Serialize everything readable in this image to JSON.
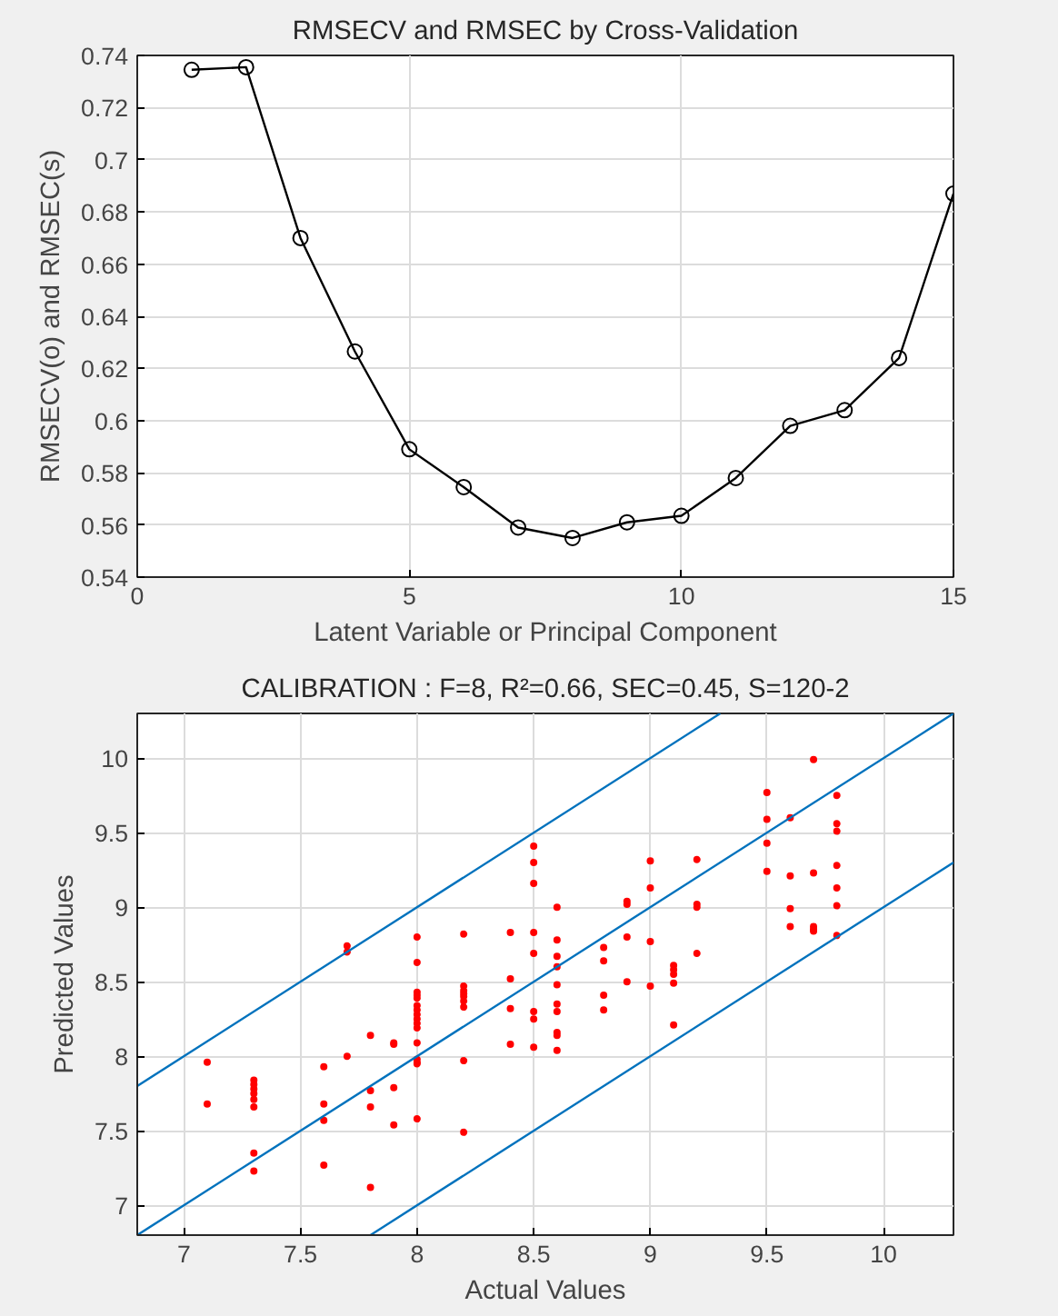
{
  "chart_data": [
    {
      "type": "line",
      "title": "RMSECV and RMSEC by Cross-Validation",
      "xlabel": "Latent Variable or Principal Component",
      "ylabel": "RMSECV(o) and RMSEC(s)",
      "x": [
        1,
        2,
        3,
        4,
        5,
        6,
        7,
        8,
        9,
        10,
        11,
        12,
        13,
        14,
        15
      ],
      "series": [
        {
          "color": "#000000",
          "marker": "circle",
          "values": [
            0.7345,
            0.7355,
            0.67,
            0.6265,
            0.589,
            0.5745,
            0.559,
            0.555,
            0.561,
            0.5635,
            0.578,
            0.598,
            0.604,
            0.624,
            0.687
          ]
        }
      ],
      "xlim": [
        0,
        15
      ],
      "ylim": [
        0.54,
        0.74
      ],
      "xticks": [
        0,
        5,
        10,
        15
      ],
      "yticks": [
        0.54,
        0.56,
        0.58,
        0.6,
        0.62,
        0.64,
        0.66,
        0.68,
        0.7,
        0.72,
        0.74
      ],
      "grid": true,
      "line_style": "solid"
    },
    {
      "type": "scatter",
      "title": "CALIBRATION : F=8, R²=0.66, SEC=0.45, S=120-2",
      "xlabel": "Actual Values",
      "ylabel": "Predicted Values",
      "series": [
        {
          "type": "scatter",
          "color": "#ff0000",
          "marker": "circle",
          "x": [
            7.1,
            7.1,
            7.3,
            7.3,
            7.3,
            7.3,
            7.3,
            7.3,
            7.3,
            7.3,
            7.6,
            7.6,
            7.6,
            7.6,
            7.7,
            7.7,
            7.7,
            7.8,
            7.8,
            7.8,
            7.8,
            7.9,
            7.9,
            7.9,
            7.9,
            8.0,
            8.0,
            8.0,
            8.0,
            8.0,
            8.0,
            8.0,
            8.0,
            8.0,
            8.0,
            8.0,
            8.0,
            8.0,
            8.0,
            8.0,
            8.0,
            8.2,
            8.2,
            8.2,
            8.2,
            8.2,
            8.2,
            8.2,
            8.2,
            8.2,
            8.4,
            8.4,
            8.4,
            8.4,
            8.5,
            8.5,
            8.5,
            8.5,
            8.5,
            8.5,
            8.5,
            8.5,
            8.6,
            8.6,
            8.6,
            8.6,
            8.6,
            8.6,
            8.6,
            8.6,
            8.6,
            8.6,
            8.8,
            8.8,
            8.8,
            8.8,
            8.9,
            8.9,
            8.9,
            8.9,
            9.0,
            9.0,
            9.0,
            9.0,
            9.1,
            9.1,
            9.1,
            9.1,
            9.1,
            9.2,
            9.2,
            9.2,
            9.2,
            9.5,
            9.5,
            9.5,
            9.5,
            9.6,
            9.6,
            9.6,
            9.6,
            9.7,
            9.7,
            9.7,
            9.7,
            9.7,
            9.8,
            9.8,
            9.8,
            9.8,
            9.8,
            9.8,
            9.8
          ],
          "values": [
            7.96,
            7.68,
            7.84,
            7.81,
            7.78,
            7.75,
            7.71,
            7.66,
            7.35,
            7.23,
            7.93,
            7.68,
            7.57,
            7.27,
            8.74,
            8.7,
            8.0,
            8.14,
            7.77,
            7.66,
            7.12,
            8.09,
            8.08,
            7.79,
            7.54,
            8.8,
            8.63,
            8.43,
            8.41,
            8.39,
            8.34,
            8.31,
            8.28,
            8.25,
            8.22,
            8.19,
            8.09,
            7.98,
            7.96,
            7.95,
            7.58,
            8.82,
            8.47,
            8.44,
            8.42,
            8.4,
            8.37,
            8.33,
            7.97,
            7.49,
            8.83,
            8.52,
            8.32,
            8.08,
            9.41,
            9.3,
            9.16,
            8.83,
            8.69,
            8.3,
            8.25,
            8.06,
            9.0,
            8.78,
            8.67,
            8.6,
            8.48,
            8.35,
            8.3,
            8.16,
            8.14,
            8.04,
            8.73,
            8.64,
            8.41,
            8.31,
            9.04,
            9.02,
            8.8,
            8.5,
            9.31,
            9.13,
            8.77,
            8.47,
            8.61,
            8.58,
            8.55,
            8.49,
            8.21,
            9.32,
            9.02,
            9.0,
            8.69,
            9.77,
            9.59,
            9.43,
            9.24,
            9.6,
            9.21,
            8.99,
            8.87,
            9.99,
            9.23,
            8.87,
            8.85,
            8.84,
            9.75,
            9.56,
            9.51,
            9.28,
            9.13,
            9.01,
            8.81
          ]
        },
        {
          "type": "line",
          "color": "#0072bd",
          "marker": "none",
          "x": [
            6.8,
            9.3
          ],
          "values": [
            7.8,
            10.3
          ]
        },
        {
          "type": "line",
          "color": "#0072bd",
          "marker": "none",
          "x": [
            6.8,
            10.3
          ],
          "values": [
            6.8,
            10.3
          ]
        },
        {
          "type": "line",
          "color": "#0072bd",
          "marker": "none",
          "x": [
            7.8,
            10.3
          ],
          "values": [
            6.8,
            9.3
          ]
        }
      ],
      "xlim": [
        6.8,
        10.3
      ],
      "ylim": [
        6.8,
        10.3
      ],
      "xticks": [
        7,
        7.5,
        8,
        8.5,
        9,
        9.5,
        10
      ],
      "yticks": [
        7,
        7.5,
        8,
        8.5,
        9,
        9.5,
        10
      ],
      "grid": true
    }
  ]
}
